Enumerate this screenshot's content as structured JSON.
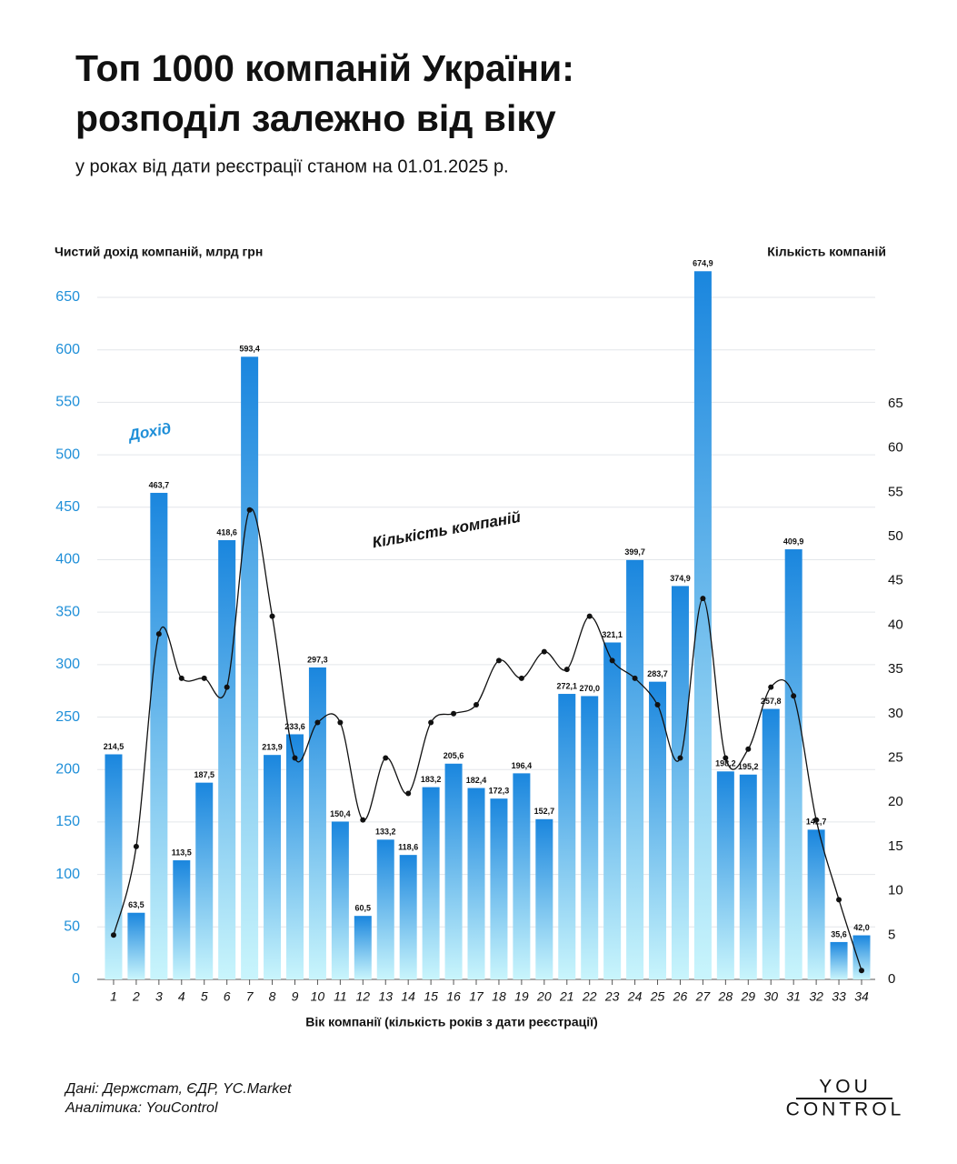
{
  "chart_data": {
    "type": "bar",
    "title": [
      "Топ 1000 компаній України:",
      "розподіл залежно від віку"
    ],
    "subtitle": "у роках від дати реєстрації станом на 01.01.2025 р.",
    "ylabel": "Чистий дохід компаній, млрд грн",
    "y2label": "Кількість компаній",
    "xlabel": "Вік компанії (кількість років з дати реєстрації)",
    "categories": [
      "1",
      "2",
      "3",
      "4",
      "5",
      "6",
      "7",
      "8",
      "9",
      "10",
      "11",
      "12",
      "13",
      "14",
      "15",
      "16",
      "17",
      "18",
      "19",
      "20",
      "21",
      "22",
      "23",
      "24",
      "25",
      "26",
      "27",
      "28",
      "29",
      "30",
      "31",
      "32",
      "33",
      "34"
    ],
    "series": [
      {
        "name": "Дохід",
        "type": "bar",
        "color": "#1a86de",
        "values": [
          214.5,
          63.5,
          463.7,
          113.5,
          187.5,
          418.6,
          593.4,
          213.9,
          233.6,
          297.3,
          150.4,
          60.5,
          133.2,
          118.6,
          183.2,
          205.6,
          182.4,
          172.3,
          196.4,
          152.7,
          272.1,
          270.0,
          321.1,
          399.7,
          283.7,
          374.9,
          674.9,
          198.2,
          195.2,
          257.8,
          409.9,
          142.7,
          35.6,
          42.0
        ],
        "value_labels": [
          "214,5",
          "63,5",
          "463,7",
          "113,5",
          "187,5",
          "418,6",
          "593,4",
          "213,9",
          "233,6",
          "297,3",
          "150,4",
          "60,5",
          "133,2",
          "118,6",
          "183,2",
          "205,6",
          "182,4",
          "172,3",
          "196,4",
          "152,7",
          "272,1",
          "270,0",
          "321,1",
          "399,7",
          "283,7",
          "374,9",
          "674,9",
          "198,2",
          "195,2",
          "257,8",
          "409,9",
          "142,7",
          "35,6",
          "42,0"
        ]
      },
      {
        "name": "Кількість компаній",
        "type": "line",
        "axis": "y2",
        "color": "#111111",
        "values": [
          5,
          15,
          39,
          34,
          34,
          33,
          53,
          41,
          25,
          29,
          29,
          18,
          25,
          21,
          29,
          30,
          31,
          36,
          34,
          37,
          35,
          41,
          36,
          34,
          31,
          25,
          43,
          25,
          26,
          33,
          32,
          18,
          9,
          1
        ]
      }
    ],
    "ylim": [
      0,
      650
    ],
    "yticks": [
      0,
      50,
      100,
      150,
      200,
      250,
      300,
      350,
      400,
      450,
      500,
      550,
      600,
      650
    ],
    "y2lim": [
      0,
      77
    ],
    "y2ticks": [
      0,
      5,
      10,
      15,
      20,
      25,
      30,
      35,
      40,
      45,
      50,
      55,
      60,
      65
    ],
    "grid": true
  },
  "footer": {
    "source": [
      "Дані: Держстат, ЄДР, YC.Market",
      "Аналітика: YouControl"
    ],
    "logo": [
      "YOU",
      "CONTROL"
    ]
  }
}
